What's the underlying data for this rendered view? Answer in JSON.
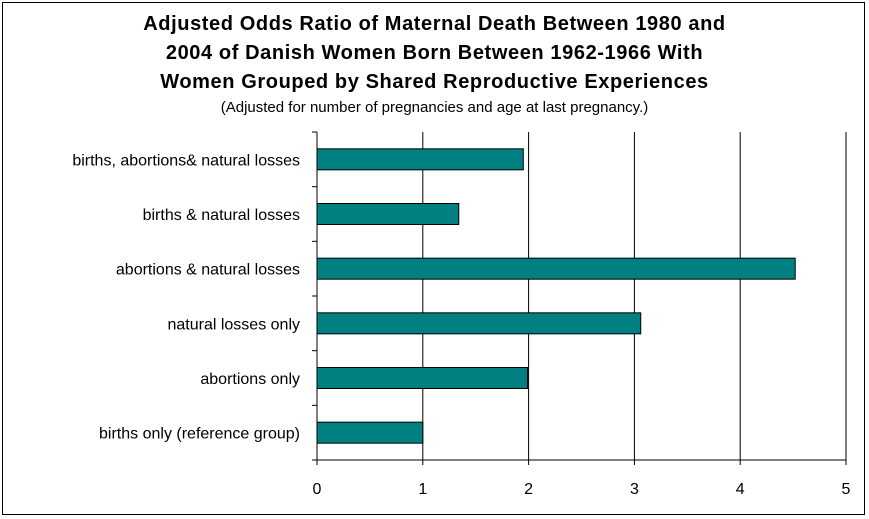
{
  "chart_data": {
    "type": "bar",
    "orientation": "horizontal",
    "title_lines": [
      "Adjusted Odds Ratio of Maternal Death Between 1980 and",
      "2004 of Danish Women Born Between 1962-1966 With",
      "Women Grouped by Shared Reproductive Experiences"
    ],
    "subtitle": "(Adjusted for number of pregnancies and age at last pregnancy.)",
    "categories": [
      "births, abortions& natural losses",
      "births & natural losses",
      "abortions & natural losses",
      "natural losses only",
      "abortions only",
      "births only (reference group)"
    ],
    "values": [
      1.95,
      1.34,
      4.52,
      3.06,
      1.99,
      1.0
    ],
    "xlim": [
      0,
      5
    ],
    "xticks": [
      "0",
      "1",
      "2",
      "3",
      "4",
      "5"
    ],
    "grid": true,
    "legend": "none",
    "bar_color": "#008080"
  }
}
